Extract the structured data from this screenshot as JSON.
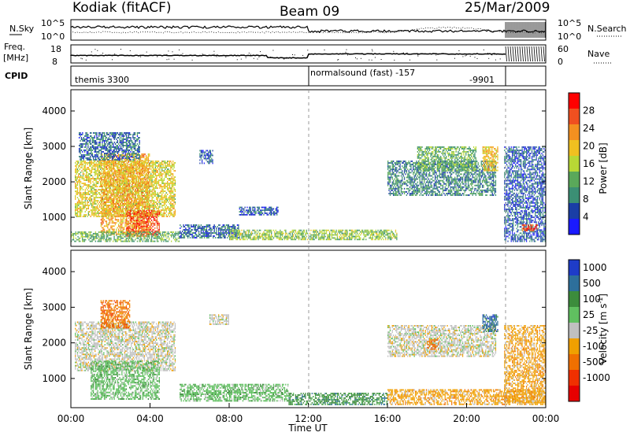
{
  "header": {
    "station": "Kodiak (fitACF)",
    "beam": "Beam 09",
    "date": "25/Mar/2009"
  },
  "strip": {
    "nsky_label": "N.Sky",
    "nsky_ticks": [
      "10^5",
      "10^0"
    ],
    "nsearch_label": "N.Search",
    "nsearch_ticks": [
      "10^5",
      "10^0"
    ],
    "freq_label_line1": "Freq.",
    "freq_label_line2": "[MHz]",
    "freq_ticks": [
      "18",
      "8"
    ],
    "nave_label": "Nave",
    "nave_ticks": [
      "60",
      "0"
    ],
    "cpid_label": "CPID",
    "cpid_entries": [
      {
        "text": "themis 3300",
        "start_hour": 0
      },
      {
        "text": "normalsound (fast) -157",
        "start_hour": 12
      },
      {
        "text": "-9901",
        "start_hour": 22
      }
    ]
  },
  "colors": {
    "power_scale": [
      "#1a1aff",
      "#1a3ea6",
      "#3b8f74",
      "#5aa85a",
      "#b8d835",
      "#f0c020",
      "#f49020",
      "#f05020",
      "#ff0000"
    ],
    "velocity_scale": [
      "#1e3cc8",
      "#2d6f9b",
      "#3c8c3c",
      "#60c060",
      "#c0c0c0",
      "#f0a000",
      "#f07000",
      "#f03000",
      "#e60000"
    ]
  },
  "chart_data": [
    {
      "type": "heatmap",
      "panel": "power",
      "ylabel": "Slant Range [km]",
      "xlabel": "",
      "ylim": [
        180,
        4600
      ],
      "xlim": [
        0,
        24
      ],
      "x_ticks": [
        "00:00",
        "04:00",
        "08:00",
        "12:00",
        "16:00",
        "20:00",
        "00:00"
      ],
      "y_ticks": [
        "1000",
        "2000",
        "3000",
        "4000"
      ],
      "colorbar_label": "Power [dB]",
      "colorbar_ticks": [
        "4",
        "8",
        "12",
        "16",
        "20",
        "24",
        "28"
      ],
      "colorbar_range": [
        0,
        32
      ],
      "regions": [
        {
          "h0": 0.2,
          "h1": 5.3,
          "r0": 1000,
          "r1": 2600,
          "level": 18
        },
        {
          "h0": 1.5,
          "h1": 4.0,
          "r0": 500,
          "r1": 2800,
          "level": 22
        },
        {
          "h0": 2.8,
          "h1": 4.5,
          "r0": 450,
          "r1": 1200,
          "level": 28
        },
        {
          "h0": 0.0,
          "h1": 5.5,
          "r0": 300,
          "r1": 600,
          "level": 12
        },
        {
          "h0": 0.4,
          "h1": 3.5,
          "r0": 2600,
          "r1": 3400,
          "level": 6
        },
        {
          "h0": 5.5,
          "h1": 8.5,
          "r0": 400,
          "r1": 800,
          "level": 6
        },
        {
          "h0": 6.5,
          "h1": 7.2,
          "r0": 2500,
          "r1": 2900,
          "level": 5
        },
        {
          "h0": 8.5,
          "h1": 10.5,
          "r0": 1050,
          "r1": 1300,
          "level": 5
        },
        {
          "h0": 8.0,
          "h1": 16.5,
          "r0": 350,
          "r1": 650,
          "level": 14
        },
        {
          "h0": 16.0,
          "h1": 21.5,
          "r0": 1600,
          "r1": 2600,
          "level": 8
        },
        {
          "h0": 17.5,
          "h1": 20.5,
          "r0": 2300,
          "r1": 3000,
          "level": 12
        },
        {
          "h0": 20.8,
          "h1": 21.6,
          "r0": 2300,
          "r1": 3000,
          "level": 20
        },
        {
          "h0": 21.9,
          "h1": 24.0,
          "r0": 300,
          "r1": 3000,
          "level": 5
        },
        {
          "h0": 22.8,
          "h1": 23.6,
          "r0": 600,
          "r1": 800,
          "level": 28
        }
      ]
    },
    {
      "type": "heatmap",
      "panel": "velocity",
      "ylabel": "Slant Range [km]",
      "xlabel": "Time UT",
      "ylim": [
        180,
        4600
      ],
      "xlim": [
        0,
        24
      ],
      "x_ticks": [
        "00:00",
        "04:00",
        "08:00",
        "12:00",
        "16:00",
        "20:00",
        "00:00"
      ],
      "y_ticks": [
        "1000",
        "2000",
        "3000",
        "4000"
      ],
      "colorbar_label": "Velocity [m s^-1]",
      "colorbar_ticks": [
        "1000",
        "500",
        "100",
        "25",
        "-25",
        "-100",
        "-500",
        "-1000"
      ],
      "regions": [
        {
          "h0": 0.2,
          "h1": 5.3,
          "r0": 1200,
          "r1": 2600,
          "level": 4
        },
        {
          "h0": 1.0,
          "h1": 4.5,
          "r0": 400,
          "r1": 1500,
          "level": 3
        },
        {
          "h0": 1.5,
          "h1": 3.0,
          "r0": 2400,
          "r1": 3200,
          "level": 6
        },
        {
          "h0": 5.5,
          "h1": 11.0,
          "r0": 350,
          "r1": 850,
          "level": 3
        },
        {
          "h0": 7.0,
          "h1": 8.0,
          "r0": 2500,
          "r1": 2800,
          "level": 4
        },
        {
          "h0": 11.0,
          "h1": 16.0,
          "r0": 250,
          "r1": 600,
          "level": 2
        },
        {
          "h0": 16.0,
          "h1": 21.5,
          "r0": 1600,
          "r1": 2500,
          "level": 4
        },
        {
          "h0": 18.0,
          "h1": 18.6,
          "r0": 1800,
          "r1": 2100,
          "level": 6
        },
        {
          "h0": 20.8,
          "h1": 21.6,
          "r0": 2300,
          "r1": 2800,
          "level": 1
        },
        {
          "h0": 16.0,
          "h1": 24.0,
          "r0": 250,
          "r1": 700,
          "level": 5
        },
        {
          "h0": 21.9,
          "h1": 24.0,
          "r0": 300,
          "r1": 2500,
          "level": 5
        }
      ]
    }
  ]
}
